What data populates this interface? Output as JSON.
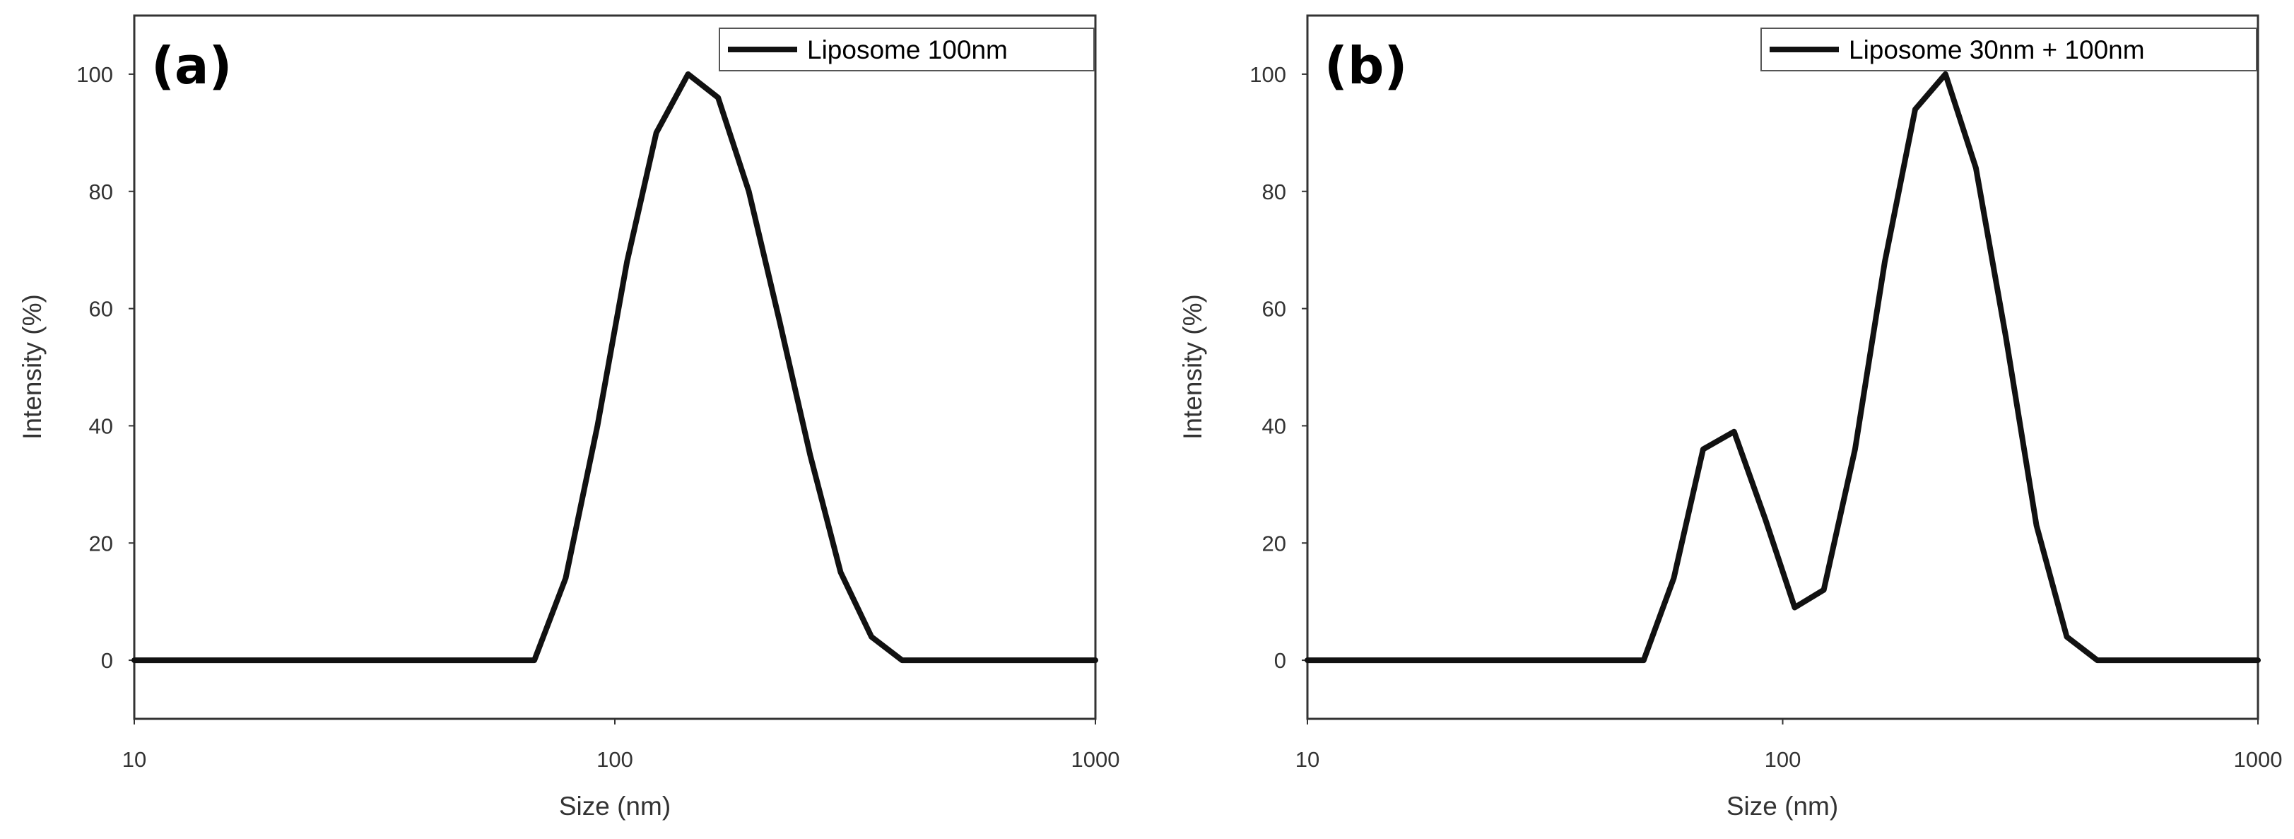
{
  "chart_data": [
    {
      "type": "line",
      "panel_label": "(a)",
      "title": "",
      "xlabel": "Size  (nm)",
      "ylabel": "Intensity (%)",
      "xscale": "log",
      "xlim": [
        10,
        1000
      ],
      "ylim": [
        -10,
        110
      ],
      "xticks": [
        10,
        100,
        1000
      ],
      "xtick_labels": [
        "10",
        "100",
        "1000"
      ],
      "yticks": [
        0,
        20,
        40,
        60,
        80,
        100
      ],
      "ytick_labels": [
        "0",
        "20",
        "40",
        "60",
        "80",
        "100"
      ],
      "grid": false,
      "legend_position": "top-right",
      "series": [
        {
          "name": "Liposome 100nm",
          "x": [
            10,
            68,
            79,
            92,
            106,
            122,
            142,
            164,
            190,
            220,
            255,
            295,
            342,
            396,
            1000
          ],
          "y": [
            0,
            0,
            14,
            40,
            68,
            90,
            100,
            96,
            80,
            58,
            35,
            15,
            4,
            0,
            0
          ]
        }
      ]
    },
    {
      "type": "line",
      "panel_label": "(b)",
      "title": "",
      "xlabel": "Size  (nm)",
      "ylabel": "Intensity (%)",
      "xscale": "log",
      "xlim": [
        10,
        1000
      ],
      "ylim": [
        -10,
        110
      ],
      "xticks": [
        10,
        100,
        1000
      ],
      "xtick_labels": [
        "10",
        "100",
        "1000"
      ],
      "yticks": [
        0,
        20,
        40,
        60,
        80,
        100
      ],
      "ytick_labels": [
        "0",
        "20",
        "40",
        "60",
        "80",
        "100"
      ],
      "grid": false,
      "legend_position": "top-right",
      "series": [
        {
          "name": "Liposome 30nm + 100nm",
          "x": [
            10,
            51,
            59,
            68,
            79,
            92,
            106,
            122,
            142,
            164,
            190,
            220,
            255,
            295,
            342,
            396,
            459,
            1000
          ],
          "y": [
            0,
            0,
            14,
            36,
            39,
            24,
            9,
            12,
            36,
            68,
            94,
            100,
            84,
            55,
            23,
            4,
            0,
            0
          ]
        }
      ]
    }
  ]
}
